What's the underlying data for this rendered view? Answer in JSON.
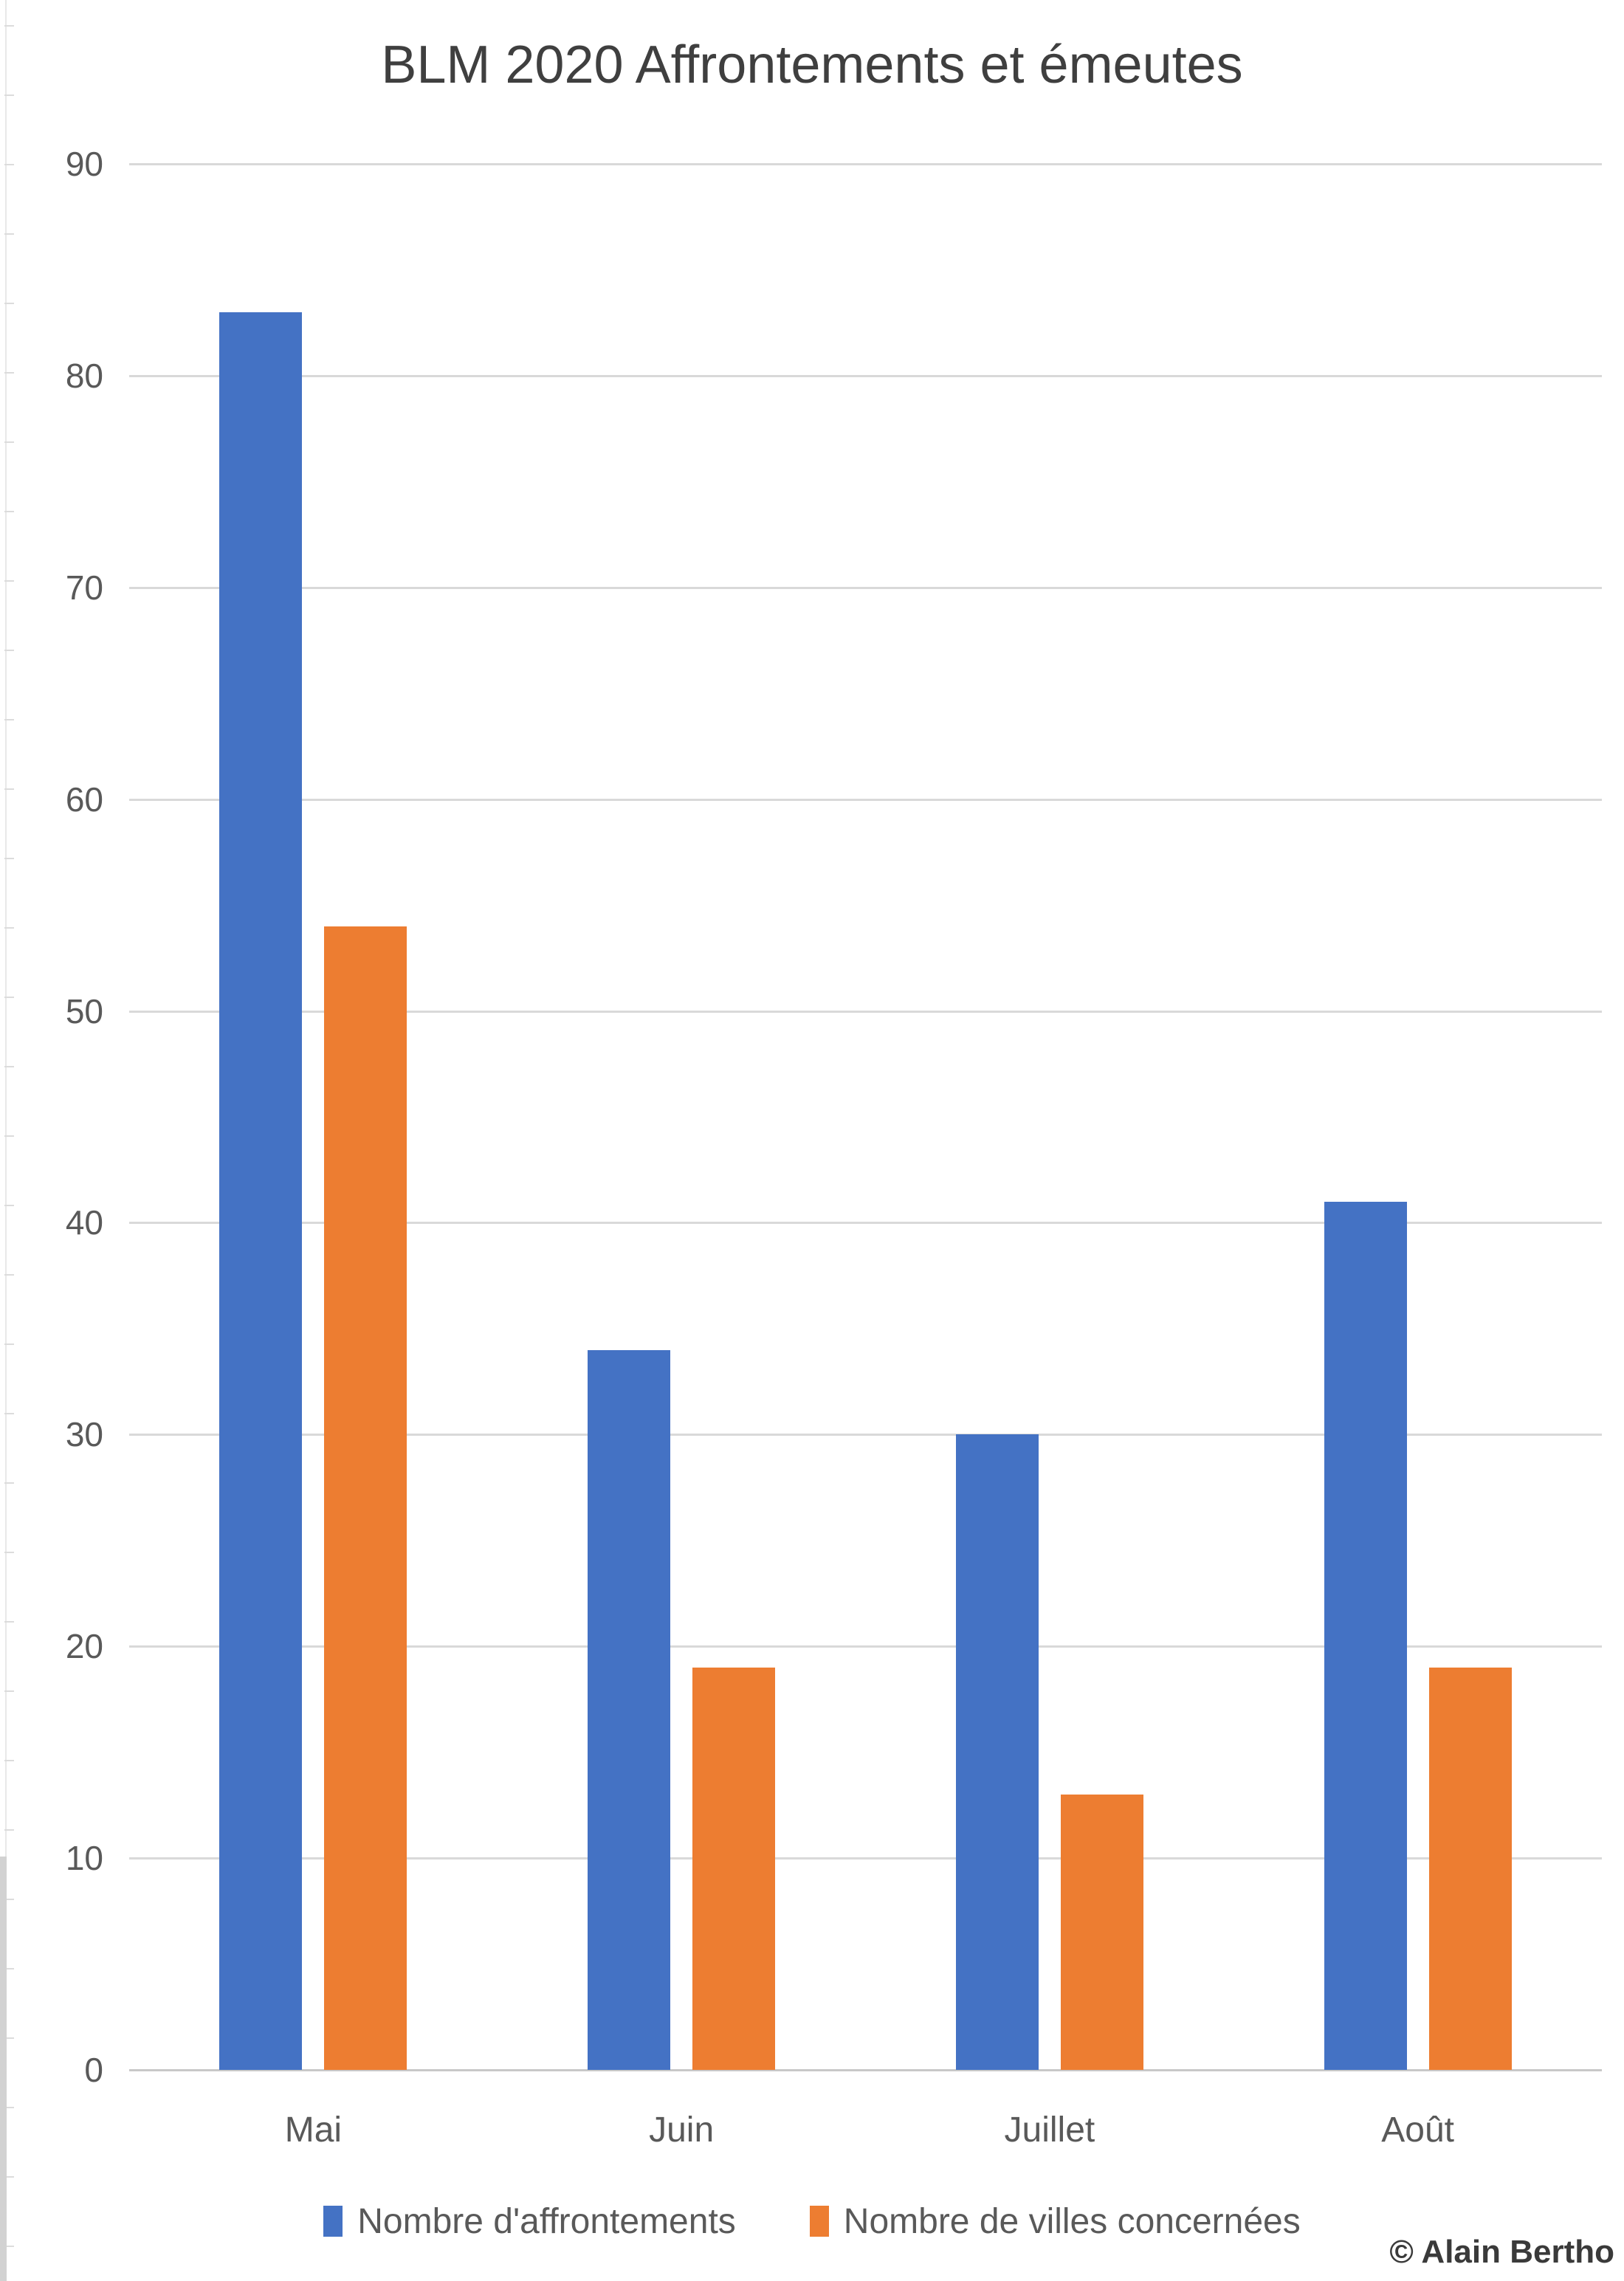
{
  "chart_data": {
    "type": "bar",
    "title": "BLM 2020 Affrontements et émeutes",
    "categories": [
      "Mai",
      "Juin",
      "Juillet",
      "Août"
    ],
    "series": [
      {
        "name": "Nombre d'affrontements",
        "color": "#4472C4",
        "values": [
          83,
          34,
          30,
          41
        ]
      },
      {
        "name": "Nombre de villes concernées",
        "color": "#ED7D31",
        "values": [
          54,
          19,
          13,
          19
        ]
      }
    ],
    "xlabel": "",
    "ylabel": "",
    "ylim": [
      0,
      90
    ],
    "ytick_step": 10,
    "grid": true,
    "legend_position": "bottom"
  },
  "footer": {
    "copyright": "© Alain Bertho"
  },
  "colors": {
    "grid": "#D9D9D9",
    "baseline": "#C8C8C8",
    "axis_text": "#595959",
    "title_text": "#3F3F3F",
    "copyright_text": "#3A3A3A"
  }
}
